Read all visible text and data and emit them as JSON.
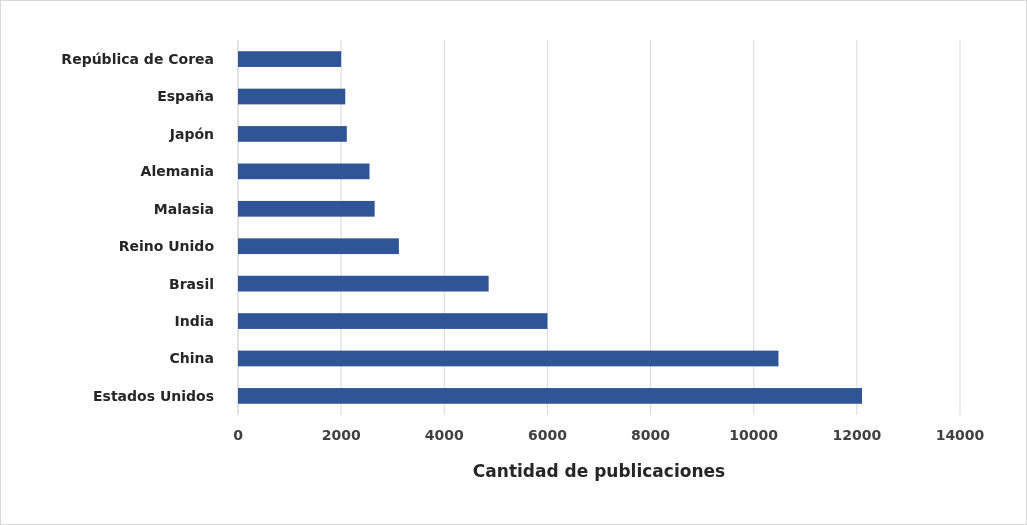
{
  "chart_data": {
    "type": "bar",
    "orientation": "horizontal",
    "xlabel": "Cantidad de publicaciones",
    "categories": [
      "República de Corea",
      "España",
      "Japón",
      "Alemania",
      "Malasia",
      "Reino Unido",
      "Brasil",
      "India",
      "China",
      "Estados Unidos"
    ],
    "values": [
      2000,
      2080,
      2110,
      2550,
      2650,
      3120,
      4860,
      6000,
      10480,
      12100
    ],
    "color": "#2f5597",
    "xlim": [
      0,
      14000
    ],
    "xticks": [
      0,
      2000,
      4000,
      6000,
      8000,
      10000,
      12000,
      14000
    ],
    "grid": "x"
  }
}
